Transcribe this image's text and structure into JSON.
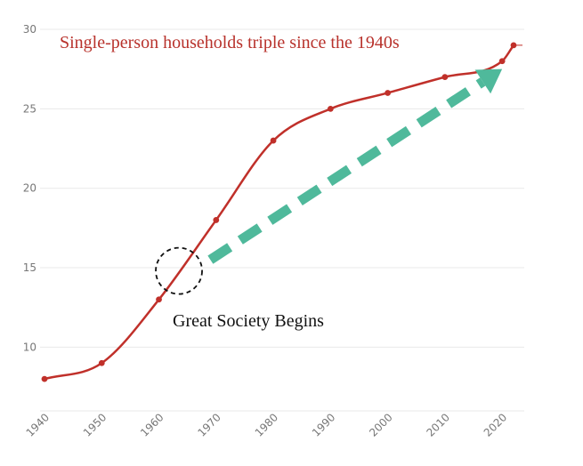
{
  "chart_data": {
    "type": "line",
    "title": "Single-person households triple since the 1940s",
    "xlabel": "",
    "ylabel": "",
    "x": [
      1940,
      1950,
      1960,
      1970,
      1980,
      1990,
      2000,
      2010,
      2020,
      2022
    ],
    "series": [
      {
        "name": "",
        "values": [
          8,
          9,
          13,
          18,
          23,
          25,
          26,
          27,
          28,
          29
        ]
      }
    ],
    "xlim": [
      1940,
      2022
    ],
    "ylim": [
      7,
      30
    ],
    "xticks": [
      "1940",
      "1950",
      "1960",
      "1970",
      "1980",
      "1990",
      "2000",
      "2010",
      "2020"
    ],
    "yticks": [
      "10",
      "15",
      "20",
      "25",
      "30"
    ],
    "grid": true,
    "annotations": [
      {
        "text": "Great Society Begins",
        "marker": "dashed circle",
        "x": 1963.5,
        "y": 14.8
      },
      {
        "marker": "dashed arrow",
        "from": [
          1969,
          15.5
        ],
        "to": [
          2020,
          27.5
        ]
      }
    ],
    "colors": {
      "line": "#c0302a",
      "title": "#b8322c",
      "arrow": "#4fb99b",
      "grid": "#e9e9e9"
    }
  }
}
